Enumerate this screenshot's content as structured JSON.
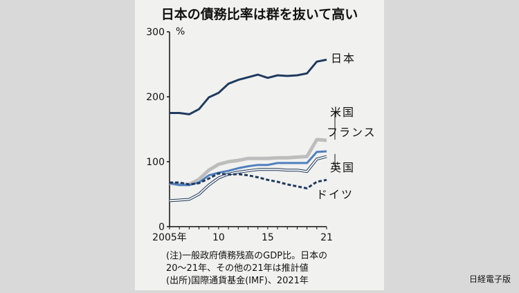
{
  "credit": "日経電子版",
  "chart_data": {
    "type": "line",
    "title": "日本の債務比率は群を抜いて高い",
    "ylabel": "%",
    "ylim": [
      0,
      300
    ],
    "yticks": [
      "0",
      "100",
      "200",
      "300"
    ],
    "xlim": [
      2005,
      2021
    ],
    "xtick_labels": [
      {
        "x": 2005,
        "label": "2005年"
      },
      {
        "x": 2010,
        "label": "10"
      },
      {
        "x": 2015,
        "label": "15"
      },
      {
        "x": 2021,
        "label": "21"
      }
    ],
    "series": [
      {
        "name": "日本",
        "color": "#1f3a5f",
        "style": "solid",
        "x": [
          2005,
          2006,
          2007,
          2008,
          2009,
          2010,
          2011,
          2012,
          2013,
          2014,
          2015,
          2016,
          2017,
          2018,
          2019,
          2020,
          2021
        ],
        "values": [
          175,
          175,
          173,
          181,
          199,
          206,
          220,
          226,
          230,
          234,
          229,
          233,
          232,
          233,
          236,
          254,
          257
        ]
      },
      {
        "name": "米国",
        "color": "#bdbdbd",
        "style": "thick",
        "x": [
          2005,
          2006,
          2007,
          2008,
          2009,
          2010,
          2011,
          2012,
          2013,
          2014,
          2015,
          2016,
          2017,
          2018,
          2019,
          2020,
          2021
        ],
        "values": [
          67,
          65,
          65,
          73,
          87,
          96,
          100,
          102,
          105,
          105,
          105,
          106,
          106,
          107,
          108,
          134,
          133
        ]
      },
      {
        "name": "フランス",
        "color": "#4f7fbf",
        "style": "solid",
        "x": [
          2005,
          2006,
          2007,
          2008,
          2009,
          2010,
          2011,
          2012,
          2013,
          2014,
          2015,
          2016,
          2017,
          2018,
          2019,
          2020,
          2021
        ],
        "values": [
          67,
          64,
          64,
          68,
          79,
          83,
          86,
          90,
          93,
          95,
          95,
          98,
          98,
          98,
          98,
          115,
          116
        ]
      },
      {
        "name": "英国",
        "color": "#1f3a5f",
        "style": "double",
        "x": [
          2005,
          2006,
          2007,
          2008,
          2009,
          2010,
          2011,
          2012,
          2013,
          2014,
          2015,
          2016,
          2017,
          2018,
          2019,
          2020,
          2021
        ],
        "values": [
          40,
          41,
          42,
          50,
          64,
          75,
          81,
          84,
          86,
          88,
          88,
          88,
          87,
          87,
          85,
          104,
          108
        ]
      },
      {
        "name": "ドイツ",
        "color": "#1f3a5f",
        "style": "dashed",
        "x": [
          2005,
          2006,
          2007,
          2008,
          2009,
          2010,
          2011,
          2012,
          2013,
          2014,
          2015,
          2016,
          2017,
          2018,
          2019,
          2020,
          2021
        ],
        "values": [
          68,
          68,
          65,
          67,
          74,
          82,
          80,
          81,
          79,
          76,
          72,
          69,
          65,
          62,
          59,
          69,
          72
        ]
      }
    ],
    "notes": [
      "(注)一般政府債務残高のGDP比。日本の",
      "20～21年、その他の21年は推計値",
      "(出所)国際通貨基金(IMF)、2021年"
    ]
  }
}
